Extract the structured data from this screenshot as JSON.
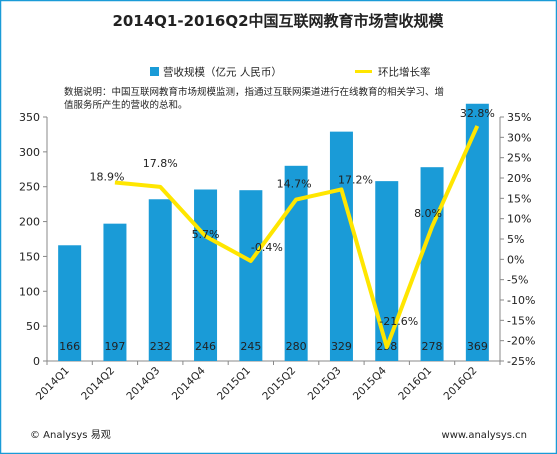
{
  "chart_data": {
    "type": "bar",
    "title": "2014Q1-2016Q2中国互联网教育市场营收规模",
    "note_lines": [
      "数据说明：中国互联网教育市场规模监测，指通过互联网渠道进行在线教育的相关学习、增",
      "值服务所产生的营收的总和。"
    ],
    "categories": [
      "2014Q1",
      "2014Q2",
      "2014Q3",
      "2014Q4",
      "2015Q1",
      "2015Q2",
      "2015Q3",
      "2015Q4",
      "2016Q1",
      "2016Q2"
    ],
    "series": [
      {
        "name": "营收规模（亿元 人民币）",
        "type": "bar",
        "axis": "left",
        "color": "#1a9bd7",
        "values": [
          166,
          197,
          232,
          246,
          245,
          280,
          329,
          258,
          278,
          369
        ],
        "labels": [
          "166",
          "197",
          "232",
          "246",
          "245",
          "280",
          "329",
          "258",
          "278",
          "369"
        ]
      },
      {
        "name": "环比增长率",
        "type": "line",
        "axis": "right",
        "color": "#ffe600",
        "values": [
          null,
          18.9,
          17.8,
          5.7,
          -0.4,
          14.7,
          17.2,
          -21.6,
          8.0,
          32.8
        ],
        "labels": [
          "",
          "18.9%",
          "17.8%",
          "5.7%",
          "-0.4%",
          "14.7%",
          "17.2%",
          "-21.6%",
          "8.0%",
          "32.8%"
        ]
      }
    ],
    "y_left": {
      "min": 0,
      "max": 350,
      "ticks": [
        "0",
        "50",
        "100",
        "150",
        "200",
        "250",
        "300",
        "350"
      ]
    },
    "y_right": {
      "min": -25,
      "max": 35,
      "ticks": [
        "-25%",
        "-20%",
        "-15%",
        "-10%",
        "-5%",
        "0%",
        "5%",
        "10%",
        "15%",
        "20%",
        "25%",
        "30%",
        "35%"
      ]
    },
    "legend_position": "top-center",
    "grid": false
  },
  "footer": {
    "left": "© Analysys 易观",
    "right": "www.analysys.cn"
  },
  "colors": {
    "bar": "#1a9bd7",
    "line": "#ffe600",
    "border": "#1a9bd7",
    "text": "#222222"
  }
}
